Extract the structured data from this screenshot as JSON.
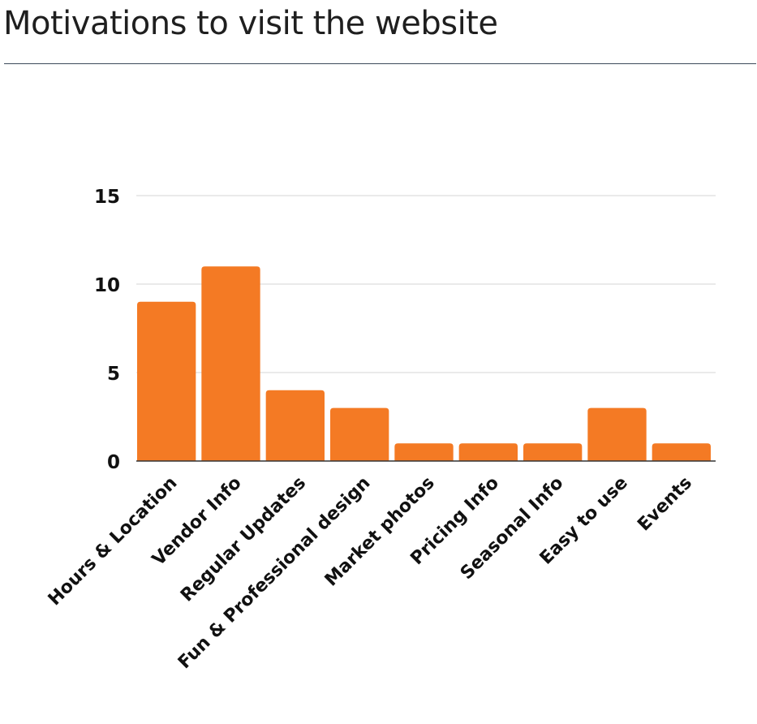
{
  "page": {
    "title": "Motivations to visit the website"
  },
  "colors": {
    "bar": "#f47a24",
    "grid": "#dddddd",
    "axis": "#333333",
    "text": "#111111",
    "rule": "#3c4a5a"
  },
  "chart_data": {
    "type": "bar",
    "title": "",
    "xlabel": "",
    "ylabel": "",
    "categories": [
      "Hours & Location",
      "Vendor Info",
      "Regular Updates",
      "Fun & Professional design",
      "Market photos",
      "Pricing Info",
      "Seasonal Info",
      "Easy to use",
      "Events"
    ],
    "values": [
      9,
      11,
      4,
      3,
      1,
      1,
      1,
      3,
      1
    ],
    "ylim": [
      0,
      15
    ],
    "yticks": [
      0,
      5,
      10,
      15
    ],
    "grid": true,
    "legend": "none"
  }
}
